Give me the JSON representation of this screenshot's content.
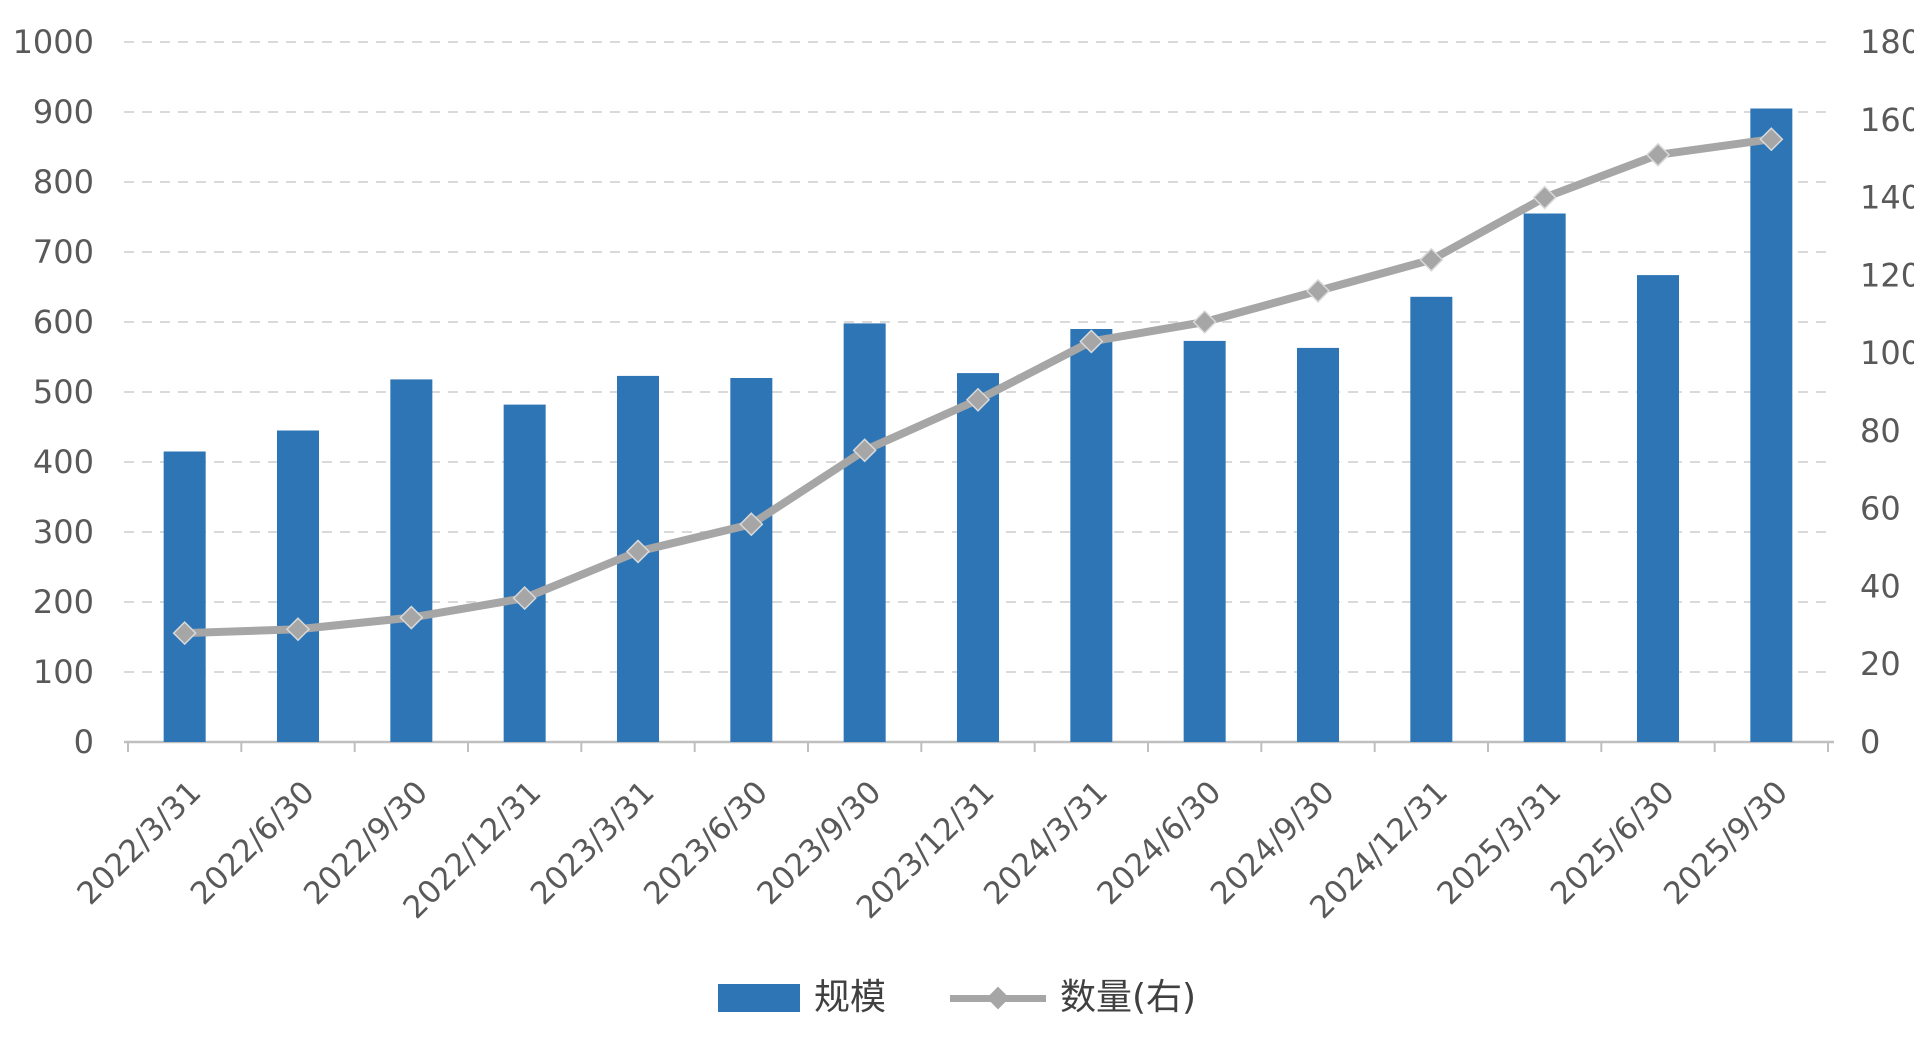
{
  "page": {
    "background": "#FFFFFF"
  },
  "chart_data": {
    "type": "bar",
    "subtype": "combo-bar-line",
    "title": "",
    "xlabel": "",
    "ylabel_left": "",
    "ylabel_right": "",
    "categories": [
      "2022/3/31",
      "2022/6/30",
      "2022/9/30",
      "2022/12/31",
      "2023/3/31",
      "2023/6/30",
      "2023/9/30",
      "2023/12/31",
      "2024/3/31",
      "2024/6/30",
      "2024/9/30",
      "2024/12/31",
      "2025/3/31",
      "2025/6/30",
      "2025/9/30"
    ],
    "series": [
      {
        "name": "规模",
        "type": "bar",
        "axis": "left",
        "color": "#2E75B6",
        "values": [
          415,
          445,
          518,
          482,
          523,
          520,
          598,
          527,
          590,
          573,
          563,
          636,
          755,
          667,
          905
        ]
      },
      {
        "name": "数量(右)",
        "type": "line",
        "axis": "right",
        "color": "#A6A6A6",
        "marker": "diamond",
        "values": [
          28,
          29,
          32,
          37,
          49,
          56,
          75,
          88,
          103,
          108,
          116,
          124,
          140,
          151,
          155
        ]
      }
    ],
    "left_axis": {
      "min": 0,
      "max": 1000,
      "step": 100
    },
    "right_axis": {
      "min": 0,
      "max": 180,
      "step": 20
    },
    "gridlines": {
      "style": "dashed",
      "color": "#D9D9D9"
    },
    "axis_line_color": "#BFBFBF",
    "axis_label_color": "#595959",
    "legend_position": "bottom"
  },
  "legend": {
    "items": [
      {
        "label": "规模",
        "swatch": "bar",
        "color": "#2E75B6"
      },
      {
        "label": "数量(右)",
        "swatch": "line-diamond",
        "color": "#A6A6A6"
      }
    ]
  }
}
